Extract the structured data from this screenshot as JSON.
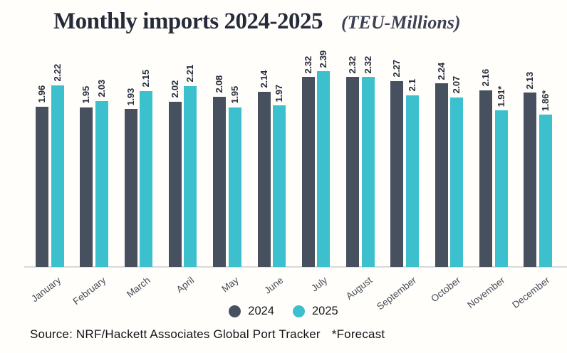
{
  "header": {
    "title": "Monthly imports 2024-2025",
    "subtitle": "(TEU-Millions)"
  },
  "chart_data": {
    "type": "bar",
    "title": "Monthly imports 2024-2025",
    "units_label": "(TEU-Millions)",
    "categories": [
      "January",
      "February",
      "March",
      "April",
      "May",
      "June",
      "July",
      "August",
      "September",
      "October",
      "November",
      "December"
    ],
    "series": [
      {
        "name": "2024",
        "color": "#46505f",
        "values": [
          1.96,
          1.95,
          1.93,
          2.02,
          2.08,
          2.14,
          2.32,
          2.32,
          2.27,
          2.24,
          2.16,
          2.13
        ],
        "labels": [
          "1.96",
          "1.95",
          "1.93",
          "2.02",
          "2.08",
          "2.14",
          "2.32",
          "2.32",
          "2.27",
          "2.24",
          "2.16",
          "2.13"
        ]
      },
      {
        "name": "2025",
        "color": "#3cc0cd",
        "values": [
          2.22,
          2.03,
          2.15,
          2.21,
          1.95,
          1.97,
          2.39,
          2.32,
          2.1,
          2.07,
          1.91,
          1.86
        ],
        "labels": [
          "2.22",
          "2.03",
          "2.15",
          "2.21",
          "1.95",
          "1.97",
          "2.39",
          "2.32",
          "2.1",
          "2.07",
          "1.91*",
          "1.86*"
        ]
      }
    ],
    "ylim": [
      0,
      2.6
    ],
    "grid": false,
    "value_labels": "rotated-90",
    "legend_position": "bottom"
  },
  "legend": {
    "items": [
      {
        "label": "2024",
        "color": "#46505f"
      },
      {
        "label": "2025",
        "color": "#3cc0cd"
      }
    ]
  },
  "footer": {
    "source": "Source: NRF/Hackett Associates Global Port Tracker",
    "note": "*Forecast"
  }
}
